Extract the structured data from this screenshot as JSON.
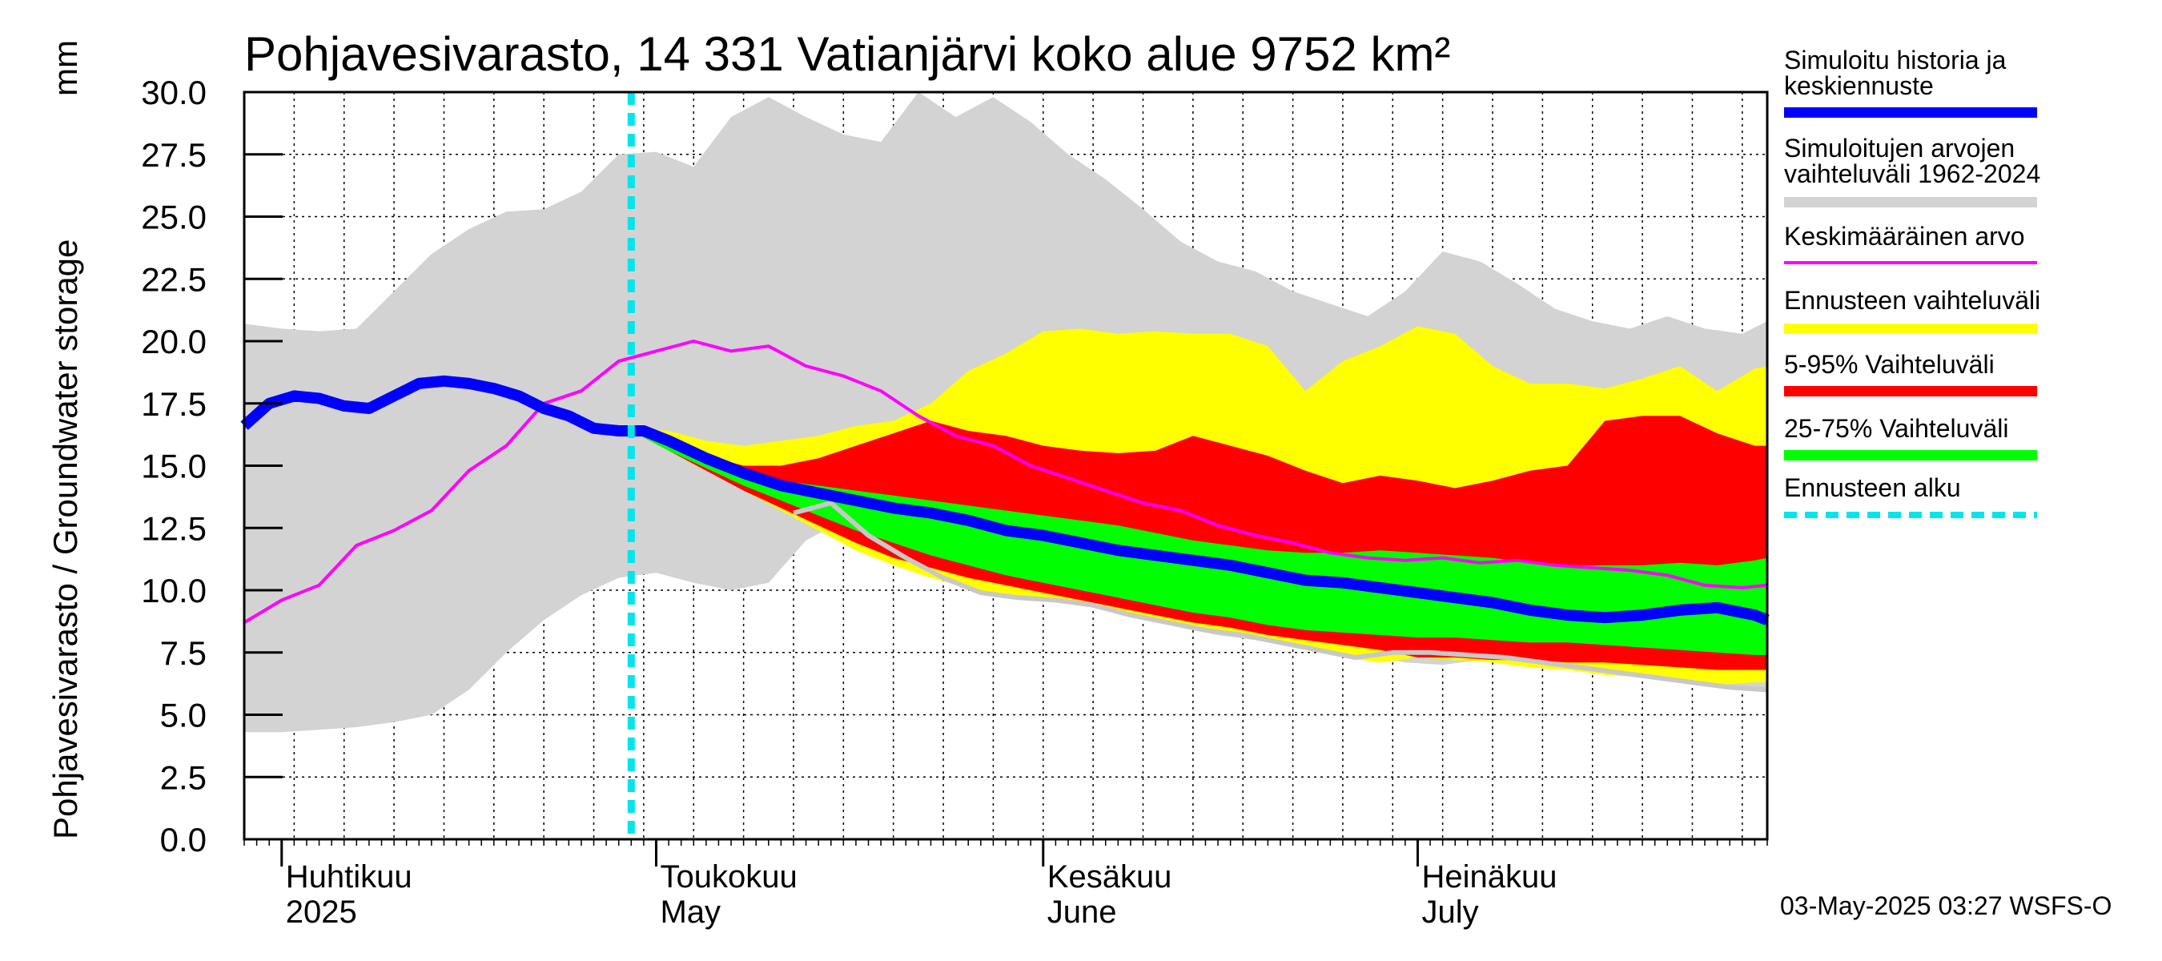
{
  "chart_data": {
    "type": "area",
    "title": "Pohjavesivarasto, 14 331 Vatianjärvi koko alue 9752 km²",
    "ylabel": "Pohjavesivarasto / Groundwater storage",
    "yunit": "mm",
    "ylim": [
      0.0,
      30.0
    ],
    "yticks": [
      "0.0",
      "2.5",
      "5.0",
      "7.5",
      "10.0",
      "12.5",
      "15.0",
      "17.5",
      "20.0",
      "22.5",
      "25.0",
      "27.5",
      "30.0"
    ],
    "xlim": [
      0,
      122
    ],
    "x_unit": "days since 2025-03-29",
    "months": [
      {
        "fi": "Huhtikuu",
        "en": "2025",
        "day": 3
      },
      {
        "fi": "Toukokuu",
        "en": "May",
        "day": 33
      },
      {
        "fi": "Kesäkuu",
        "en": "June",
        "day": 64
      },
      {
        "fi": "Heinäkuu",
        "en": "July",
        "day": 94
      }
    ],
    "forecast_start_day": 31,
    "series": [
      {
        "name": "Simuloitujen arvojen vaihteluväli 1962-2024",
        "kind": "band",
        "color": "#d3d3d3",
        "x": [
          0,
          3,
          6,
          9,
          12,
          15,
          18,
          21,
          24,
          27,
          30,
          33,
          36,
          39,
          42,
          45,
          48,
          51,
          54,
          57,
          60,
          63,
          66,
          69,
          72,
          75,
          78,
          81,
          84,
          87,
          90,
          93,
          96,
          99,
          102,
          105,
          108,
          111,
          114,
          117,
          120,
          122
        ],
        "upper": [
          20.7,
          20.5,
          20.4,
          20.5,
          22.0,
          23.5,
          24.5,
          25.2,
          25.3,
          26.0,
          27.5,
          27.6,
          27.0,
          29.0,
          29.8,
          29.0,
          28.3,
          28.0,
          30.0,
          29.0,
          29.8,
          28.8,
          27.5,
          26.5,
          25.3,
          24.0,
          23.2,
          22.8,
          22.0,
          21.5,
          21.0,
          22.0,
          23.6,
          23.2,
          22.3,
          21.3,
          20.8,
          20.5,
          21.0,
          20.5,
          20.3,
          20.8
        ],
        "lower": [
          4.3,
          4.3,
          4.4,
          4.5,
          4.7,
          5.0,
          6.0,
          7.5,
          8.8,
          9.8,
          10.5,
          10.7,
          10.3,
          10.0,
          10.3,
          12.0,
          12.8,
          12.5,
          11.5,
          11.0,
          10.4,
          10.0,
          9.6,
          9.3,
          8.9,
          8.5,
          8.2,
          8.0,
          7.9,
          7.7,
          7.4,
          7.1,
          7.0,
          7.2,
          7.3,
          7.1,
          6.9,
          6.7,
          6.5,
          6.3,
          6.1,
          6.0
        ]
      },
      {
        "name": "Ennusteen vaihteluväli",
        "kind": "band",
        "color": "#ffff00",
        "x": [
          31,
          34,
          37,
          40,
          43,
          46,
          49,
          52,
          55,
          58,
          61,
          64,
          67,
          70,
          73,
          76,
          79,
          82,
          85,
          88,
          91,
          94,
          97,
          100,
          103,
          106,
          109,
          112,
          115,
          118,
          121,
          122
        ],
        "upper": [
          16.5,
          16.4,
          16.0,
          15.8,
          16.0,
          16.2,
          16.6,
          16.8,
          17.5,
          18.8,
          19.5,
          20.4,
          20.5,
          20.3,
          20.4,
          20.3,
          20.3,
          19.8,
          18.0,
          19.2,
          19.8,
          20.6,
          20.3,
          19.0,
          18.3,
          18.3,
          18.1,
          18.5,
          19.0,
          18.0,
          18.9,
          19.0
        ],
        "lower": [
          16.4,
          15.6,
          14.8,
          14.0,
          13.2,
          12.4,
          11.6,
          11.0,
          10.5,
          10.1,
          9.8,
          9.6,
          9.4,
          9.1,
          8.8,
          8.5,
          8.2,
          7.9,
          7.6,
          7.3,
          7.1,
          7.3,
          7.2,
          7.1,
          6.9,
          6.8,
          6.6,
          6.5,
          6.3,
          6.2,
          6.3,
          6.3
        ]
      },
      {
        "name": "5-95% Vaihteluväli",
        "kind": "band",
        "color": "#ff0000",
        "x": [
          31,
          34,
          37,
          40,
          43,
          46,
          49,
          52,
          55,
          58,
          61,
          64,
          67,
          70,
          73,
          76,
          79,
          82,
          85,
          88,
          91,
          94,
          97,
          100,
          103,
          106,
          109,
          112,
          115,
          118,
          121,
          122
        ],
        "upper": [
          16.4,
          16.0,
          15.4,
          15.0,
          15.0,
          15.3,
          15.8,
          16.3,
          16.8,
          16.4,
          16.2,
          15.8,
          15.6,
          15.5,
          15.6,
          16.2,
          15.8,
          15.4,
          14.8,
          14.3,
          14.6,
          14.4,
          14.1,
          14.4,
          14.8,
          15.0,
          16.8,
          17.0,
          17.0,
          16.3,
          15.8,
          15.8
        ],
        "lower": [
          16.4,
          15.6,
          14.8,
          14.0,
          13.3,
          12.6,
          11.9,
          11.3,
          10.9,
          10.5,
          10.2,
          9.9,
          9.6,
          9.3,
          9.0,
          8.7,
          8.5,
          8.2,
          8.0,
          7.8,
          7.6,
          7.3,
          7.3,
          7.2,
          7.2,
          7.1,
          7.1,
          7.0,
          6.9,
          6.8,
          6.8,
          6.8
        ]
      },
      {
        "name": "25-75% Vaihteluväli",
        "kind": "band",
        "color": "#00ff00",
        "x": [
          31,
          34,
          37,
          40,
          43,
          46,
          49,
          52,
          55,
          58,
          61,
          64,
          67,
          70,
          73,
          76,
          79,
          82,
          85,
          88,
          91,
          94,
          97,
          100,
          103,
          106,
          109,
          112,
          115,
          118,
          121,
          122
        ],
        "upper": [
          16.4,
          15.9,
          15.2,
          14.7,
          14.4,
          14.2,
          14.0,
          13.8,
          13.6,
          13.4,
          13.2,
          13.0,
          12.8,
          12.6,
          12.3,
          12.0,
          11.8,
          11.6,
          11.5,
          11.5,
          11.6,
          11.5,
          11.4,
          11.3,
          11.1,
          11.0,
          11.0,
          11.0,
          11.1,
          11.0,
          11.2,
          11.3
        ],
        "lower": [
          16.4,
          15.6,
          14.9,
          14.2,
          13.6,
          13.0,
          12.4,
          11.9,
          11.4,
          11.0,
          10.6,
          10.3,
          10.0,
          9.7,
          9.4,
          9.1,
          8.9,
          8.6,
          8.4,
          8.3,
          8.2,
          8.1,
          8.1,
          8.0,
          7.9,
          7.9,
          7.8,
          7.7,
          7.6,
          7.5,
          7.4,
          7.4
        ]
      },
      {
        "name": "Keskimääräinen arvo",
        "kind": "line",
        "color": "#ff00ff",
        "x": [
          0,
          3,
          6,
          9,
          12,
          15,
          18,
          21,
          24,
          27,
          30,
          33,
          36,
          39,
          42,
          45,
          48,
          51,
          54,
          57,
          60,
          63,
          66,
          69,
          72,
          75,
          78,
          81,
          84,
          87,
          90,
          93,
          96,
          99,
          102,
          105,
          108,
          111,
          114,
          117,
          120,
          122
        ],
        "values": [
          8.7,
          9.6,
          10.2,
          11.8,
          12.4,
          13.2,
          14.8,
          15.8,
          17.5,
          18.0,
          19.2,
          19.6,
          20.0,
          19.6,
          19.8,
          19.0,
          18.6,
          18.0,
          17.0,
          16.2,
          15.8,
          15.0,
          14.5,
          14.0,
          13.5,
          13.2,
          12.6,
          12.2,
          11.9,
          11.5,
          11.3,
          11.2,
          11.3,
          11.1,
          11.2,
          11.0,
          10.9,
          10.8,
          10.6,
          10.2,
          10.1,
          10.2
        ]
      },
      {
        "name": "Observed / reference (light grey line)",
        "kind": "line",
        "color": "#c8c8c8",
        "x": [
          44,
          47,
          50,
          53,
          56,
          59,
          62,
          65,
          68,
          71,
          74,
          77,
          80,
          83,
          86,
          89,
          92,
          95,
          98,
          101,
          104,
          107,
          110,
          113,
          116,
          119,
          122
        ],
        "values": [
          13.1,
          13.5,
          12.2,
          11.3,
          10.5,
          9.9,
          9.7,
          9.6,
          9.4,
          9.0,
          8.7,
          8.4,
          8.2,
          7.9,
          7.6,
          7.3,
          7.5,
          7.5,
          7.4,
          7.3,
          7.1,
          6.9,
          6.7,
          6.5,
          6.3,
          6.1,
          6.0
        ]
      },
      {
        "name": "Simuloitu historia ja keskiennuste",
        "kind": "line",
        "color": "#0000ff",
        "x": [
          0,
          2,
          4,
          6,
          8,
          10,
          12,
          14,
          16,
          18,
          20,
          22,
          24,
          26,
          28,
          30,
          32,
          34,
          37,
          40,
          43,
          46,
          49,
          52,
          55,
          58,
          61,
          64,
          67,
          70,
          73,
          76,
          79,
          82,
          85,
          88,
          91,
          94,
          97,
          100,
          103,
          106,
          109,
          112,
          115,
          118,
          121,
          122
        ],
        "values": [
          16.6,
          17.5,
          17.8,
          17.7,
          17.4,
          17.3,
          17.8,
          18.3,
          18.4,
          18.3,
          18.1,
          17.8,
          17.3,
          17.0,
          16.5,
          16.4,
          16.4,
          16.0,
          15.3,
          14.7,
          14.2,
          13.9,
          13.6,
          13.3,
          13.1,
          12.8,
          12.4,
          12.2,
          11.9,
          11.6,
          11.4,
          11.2,
          11.0,
          10.7,
          10.4,
          10.3,
          10.1,
          9.9,
          9.7,
          9.5,
          9.2,
          9.0,
          8.9,
          9.0,
          9.2,
          9.3,
          9.0,
          8.8
        ]
      }
    ],
    "legend": [
      {
        "label": "Simuloitu historia ja keskiennuste",
        "color": "#0000ff",
        "style": "thick"
      },
      {
        "label": "Simuloitujen arvojen vaihteluväli 1962-2024",
        "color": "#d3d3d3",
        "style": "thick"
      },
      {
        "label": "Keskimääräinen arvo",
        "color": "#ff00ff",
        "style": "thin"
      },
      {
        "label": "Ennusteen vaihteluväli",
        "color": "#ffff00",
        "style": "thick"
      },
      {
        "label": "5-95% Vaihteluväli",
        "color": "#ff0000",
        "style": "thick"
      },
      {
        "label": "25-75% Vaihteluväli",
        "color": "#00ff00",
        "style": "thick"
      },
      {
        "label": "Ennusteen alku",
        "color": "#00e5ee",
        "style": "dashed"
      }
    ],
    "legend_position": "right"
  },
  "page": {
    "title": "Pohjavesivarasto, 14 331 Vatianjärvi koko alue 9752 km²",
    "ylabel": "Pohjavesivarasto / Groundwater storage",
    "yunit": "mm",
    "footer": "03-May-2025 03:27 WSFS-O",
    "legend": {
      "item1": "Simuloitu historia ja",
      "item1b": "keskiennuste",
      "item2": "Simuloitujen arvojen",
      "item2b": "vaihteluväli 1962-2024",
      "item3": "Keskimääräinen arvo",
      "item4": "Ennusteen vaihteluväli",
      "item5": "5-95% Vaihteluväli",
      "item6": "25-75% Vaihteluväli",
      "item7": "Ennusteen alku"
    }
  }
}
